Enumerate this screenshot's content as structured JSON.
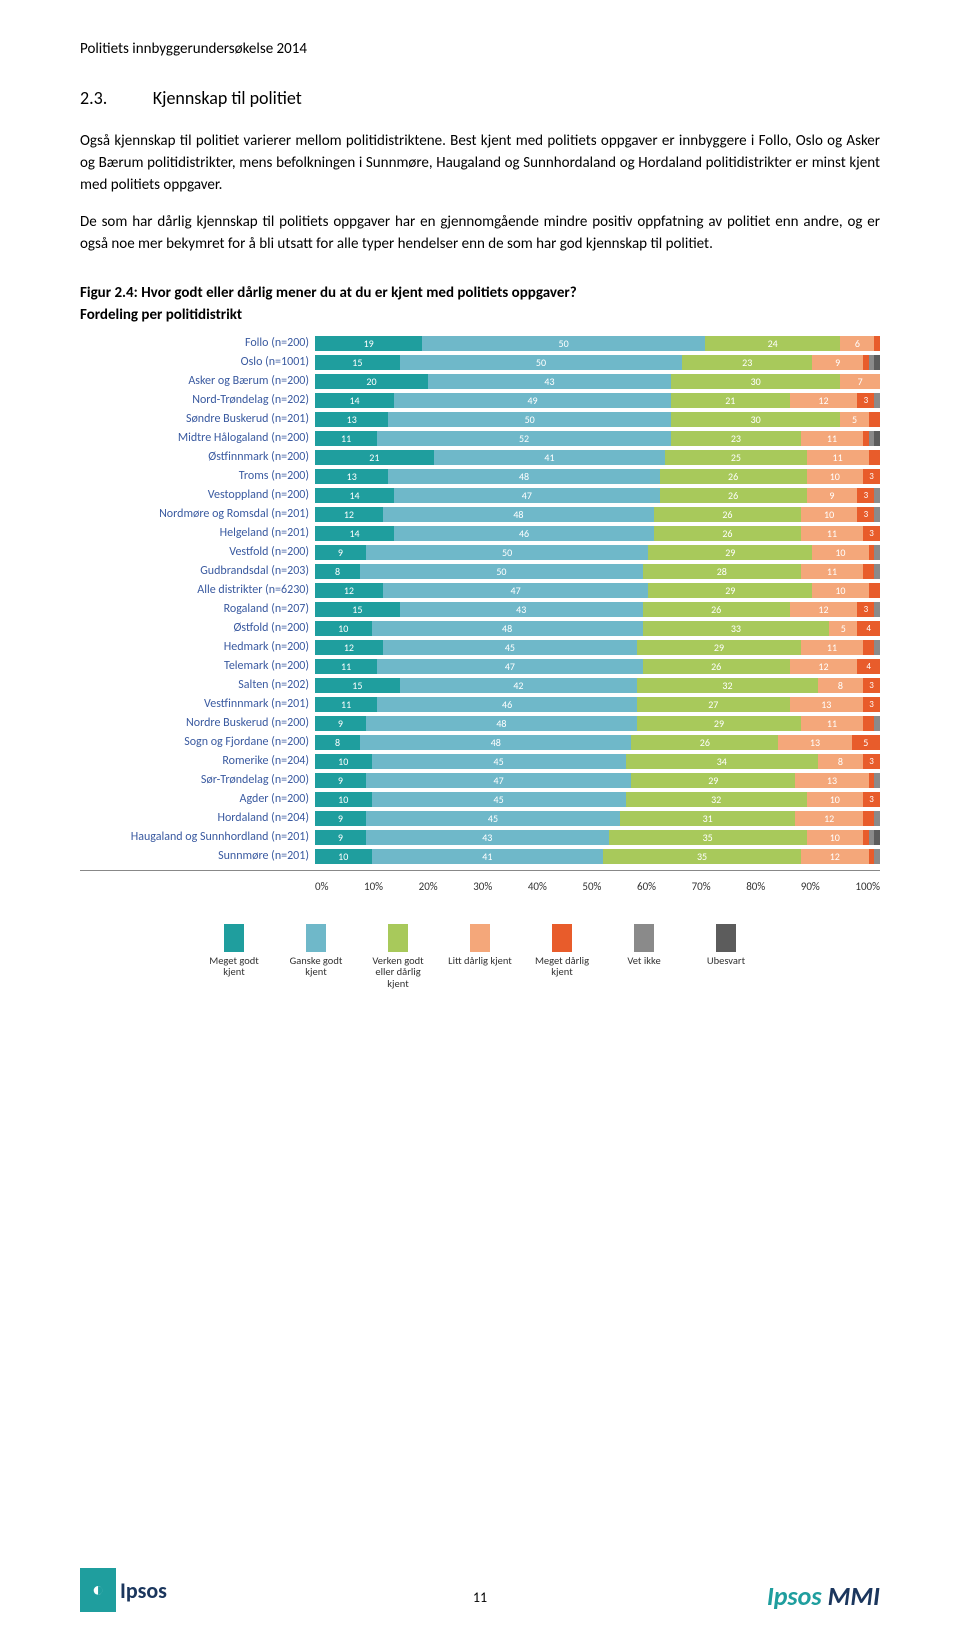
{
  "header": "Politiets innbyggerundersøkelse 2014",
  "section_num": "2.3.",
  "section_title": "Kjennskap til politiet",
  "para1": "Også kjennskap til politiet varierer mellom politidistriktene. Best kjent med politiets oppgaver er innbyggere i Follo, Oslo og Asker og Bærum politidistrikter, mens befolkningen i Sunnmøre, Haugaland og Sunnhordaland og Hordaland politidistrikter er minst kjent med politiets oppgaver.",
  "para2": "De som har dårlig kjennskap til politiets oppgaver har en gjennomgående mindre positiv oppfatning av politiet enn andre, og er også noe mer bekymret for å bli utsatt for alle typer hendelser enn de som har god kjennskap til politiet.",
  "fig_caption": "Figur 2.4: Hvor godt eller dårlig mener du at du er kjent med politiets oppgaver?",
  "fig_sub": "Fordeling per politidistrikt",
  "colors": {
    "c1": "#1f9e9e",
    "c2": "#6fb8c9",
    "c3": "#a8c95b",
    "c4": "#f4a77a",
    "c5": "#e85c2b",
    "c6": "#8a8a8a",
    "c7": "#5c5c5c",
    "label": "#3a5aa0"
  },
  "legend": [
    {
      "label": "Meget godt kjent",
      "color": "#1f9e9e"
    },
    {
      "label": "Ganske godt kjent",
      "color": "#6fb8c9"
    },
    {
      "label": "Verken godt eller dårlig kjent",
      "color": "#a8c95b"
    },
    {
      "label": "Litt dårlig kjent",
      "color": "#f4a77a"
    },
    {
      "label": "Meget dårlig kjent",
      "color": "#e85c2b"
    },
    {
      "label": "Vet ikke",
      "color": "#8a8a8a"
    },
    {
      "label": "Ubesvart",
      "color": "#5c5c5c"
    }
  ],
  "axis": [
    "0%",
    "10%",
    "20%",
    "30%",
    "40%",
    "50%",
    "60%",
    "70%",
    "80%",
    "90%",
    "100%"
  ],
  "rows": [
    {
      "label": "Follo (n=200)",
      "v": [
        19,
        50,
        24,
        6,
        1,
        0,
        0
      ]
    },
    {
      "label": "Oslo (n=1001)",
      "v": [
        15,
        50,
        23,
        9,
        1,
        1,
        1
      ]
    },
    {
      "label": "Asker og Bærum (n=200)",
      "v": [
        20,
        43,
        30,
        7,
        0,
        0,
        0
      ]
    },
    {
      "label": "Nord-Trøndelag (n=202)",
      "v": [
        14,
        49,
        21,
        12,
        3,
        1,
        0
      ]
    },
    {
      "label": "Søndre Buskerud (n=201)",
      "v": [
        13,
        50,
        30,
        5,
        2,
        0,
        0
      ]
    },
    {
      "label": "Midtre Hålogaland (n=200)",
      "v": [
        11,
        52,
        23,
        11,
        1,
        1,
        1
      ]
    },
    {
      "label": "Østfinnmark (n=200)",
      "v": [
        21,
        41,
        25,
        11,
        2,
        0,
        0
      ]
    },
    {
      "label": "Troms (n=200)",
      "v": [
        13,
        48,
        26,
        10,
        3,
        0,
        0
      ]
    },
    {
      "label": "Vestoppland (n=200)",
      "v": [
        14,
        47,
        26,
        9,
        3,
        1,
        0
      ]
    },
    {
      "label": "Nordmøre og Romsdal (n=201)",
      "v": [
        12,
        48,
        26,
        10,
        3,
        1,
        0
      ]
    },
    {
      "label": "Helgeland (n=201)",
      "v": [
        14,
        46,
        26,
        11,
        3,
        0,
        0
      ]
    },
    {
      "label": "Vestfold (n=200)",
      "v": [
        9,
        50,
        29,
        10,
        1,
        1,
        0
      ]
    },
    {
      "label": "Gudbrandsdal (n=203)",
      "v": [
        8,
        50,
        28,
        11,
        2,
        1,
        0
      ]
    },
    {
      "label": "Alle distrikter (n=6230)",
      "v": [
        12,
        47,
        29,
        10,
        2,
        0,
        0
      ]
    },
    {
      "label": "Rogaland (n=207)",
      "v": [
        15,
        43,
        26,
        12,
        3,
        1,
        0
      ]
    },
    {
      "label": "Østfold (n=200)",
      "v": [
        10,
        48,
        33,
        5,
        4,
        0,
        0
      ]
    },
    {
      "label": "Hedmark (n=200)",
      "v": [
        12,
        45,
        29,
        11,
        2,
        1,
        0
      ]
    },
    {
      "label": "Telemark (n=200)",
      "v": [
        11,
        47,
        26,
        12,
        4,
        0,
        0
      ]
    },
    {
      "label": "Salten (n=202)",
      "v": [
        15,
        42,
        32,
        8,
        3,
        0,
        0
      ]
    },
    {
      "label": "Vestfinnmark (n=201)",
      "v": [
        11,
        46,
        27,
        13,
        3,
        0,
        0
      ]
    },
    {
      "label": "Nordre Buskerud (n=200)",
      "v": [
        9,
        48,
        29,
        11,
        2,
        1,
        0
      ]
    },
    {
      "label": "Sogn og Fjordane (n=200)",
      "v": [
        8,
        48,
        26,
        13,
        5,
        0,
        0
      ]
    },
    {
      "label": "Romerike (n=204)",
      "v": [
        10,
        45,
        34,
        8,
        3,
        0,
        0
      ]
    },
    {
      "label": "Sør-Trøndelag (n=200)",
      "v": [
        9,
        47,
        29,
        13,
        1,
        1,
        0
      ]
    },
    {
      "label": "Agder (n=200)",
      "v": [
        10,
        45,
        32,
        10,
        3,
        0,
        0
      ]
    },
    {
      "label": "Hordaland (n=204)",
      "v": [
        9,
        45,
        31,
        12,
        2,
        1,
        0
      ]
    },
    {
      "label": "Haugaland og Sunnhordland (n=201)",
      "v": [
        9,
        43,
        35,
        10,
        1,
        1,
        1
      ]
    },
    {
      "label": "Sunnmøre (n=201)",
      "v": [
        10,
        41,
        35,
        12,
        1,
        1,
        0
      ]
    }
  ],
  "page_number": "11",
  "logo_left": "Ipsos",
  "logo_right_a": "Ipsos",
  "logo_right_b": "MMI"
}
